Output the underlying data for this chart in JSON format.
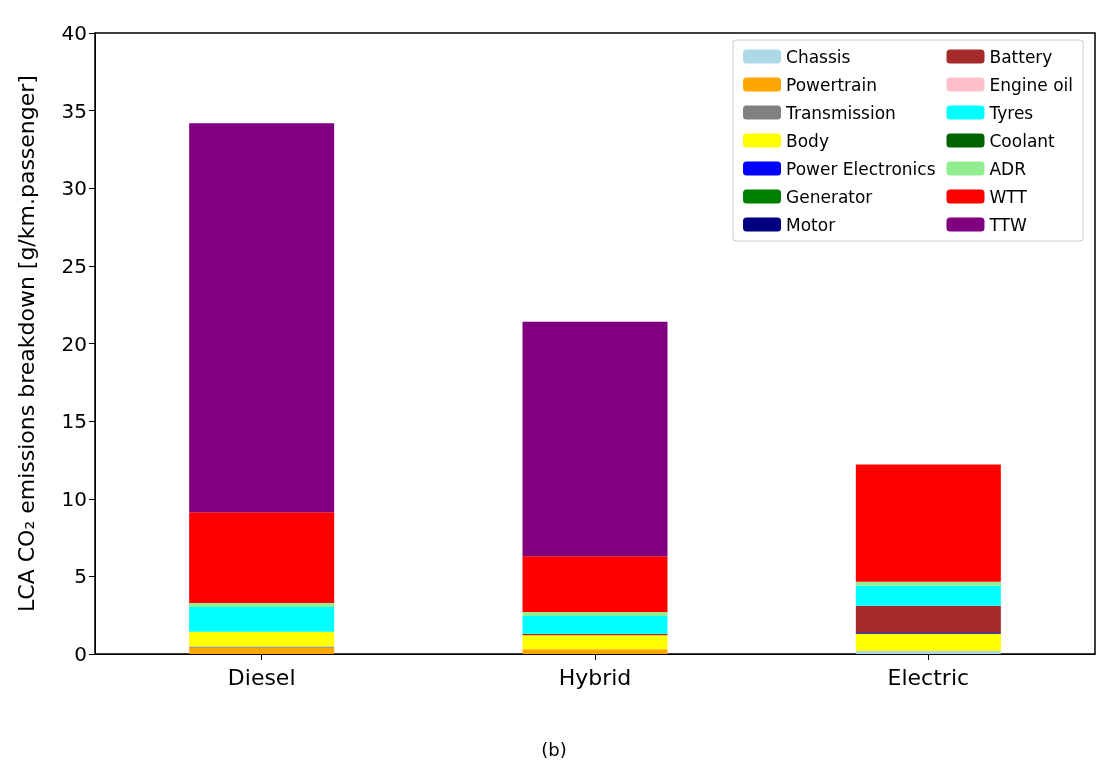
{
  "chart_data": {
    "type": "bar",
    "stacked": true,
    "ylabel": "LCA CO₂ emissions breakdown [g/km.passenger]",
    "annotations": [
      "(b)"
    ],
    "categories": [
      "Diesel",
      "Hybrid",
      "Electric"
    ],
    "series": [
      {
        "name": "Chassis",
        "color": "#add8e6",
        "values": [
          null,
          null,
          0.2
        ]
      },
      {
        "name": "Powertrain",
        "color": "#ffa500",
        "values": [
          0.4,
          0.3,
          0
        ]
      },
      {
        "name": "Transmission",
        "color": "#808080",
        "values": [
          0.08,
          null,
          0
        ]
      },
      {
        "name": "Body",
        "color": "#ffff00",
        "values": [
          0.95,
          0.9,
          1.1
        ]
      },
      {
        "name": "Power Electronics",
        "color": "#0000ff",
        "values": [
          0,
          0,
          0
        ]
      },
      {
        "name": "Generator",
        "color": "#008000",
        "values": [
          0,
          0,
          0
        ]
      },
      {
        "name": "Motor",
        "color": "#000080",
        "values": [
          0,
          0,
          0.1
        ]
      },
      {
        "name": "Battery",
        "color": "#a52a2a",
        "values": [
          0,
          0.1,
          1.7
        ]
      },
      {
        "name": "Engine oil",
        "color": "#ffc0cb",
        "values": [
          0,
          0,
          0
        ]
      },
      {
        "name": "Tyres",
        "color": "#00ffff",
        "values": [
          1.6,
          1.15,
          1.3
        ]
      },
      {
        "name": "Coolant",
        "color": "#006400",
        "values": [
          0,
          0,
          0
        ]
      },
      {
        "name": "ADR",
        "color": "#90ee90",
        "values": [
          0.25,
          0.25,
          0.25
        ]
      },
      {
        "name": "WTT",
        "color": "#ff0000",
        "values": [
          5.85,
          3.6,
          7.55
        ]
      },
      {
        "name": "TTW",
        "color": "#800080",
        "values": [
          25.05,
          15.1,
          0
        ]
      }
    ],
    "ylim": [
      0,
      40
    ],
    "yticks": [
      0,
      5,
      10,
      15,
      20,
      25,
      30,
      35,
      40
    ],
    "grid": false,
    "legend": "top right"
  }
}
